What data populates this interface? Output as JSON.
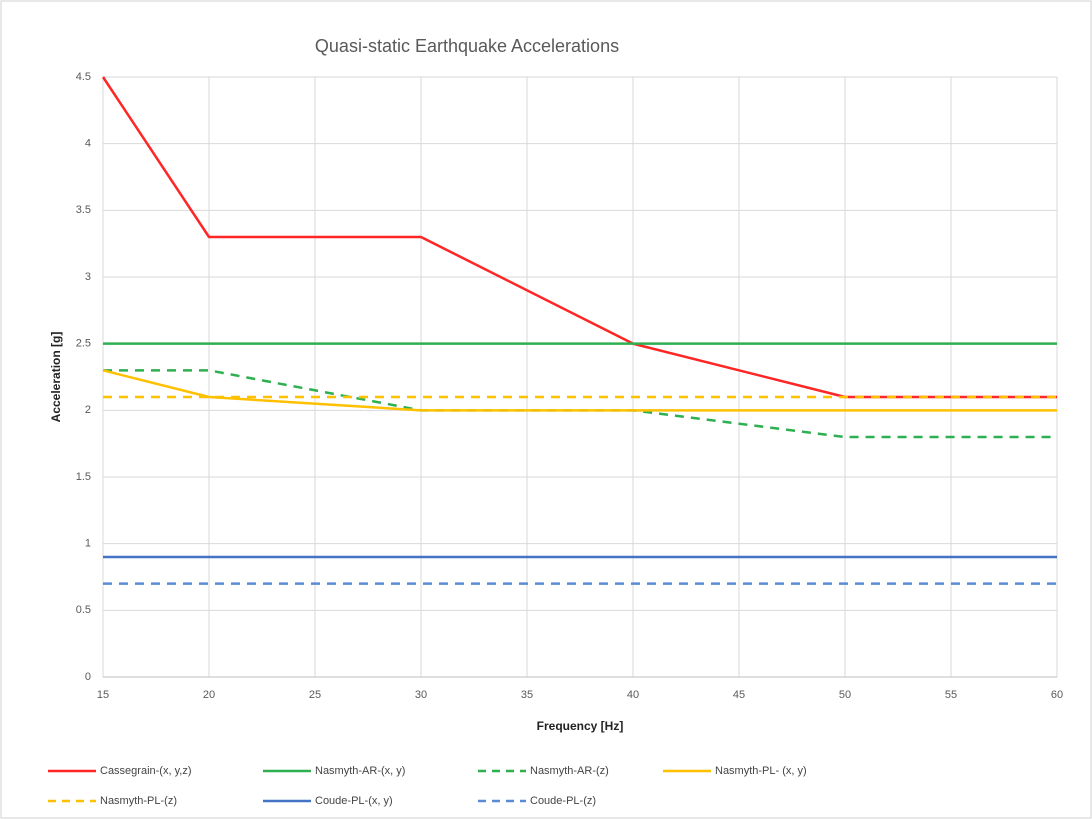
{
  "chart_data": {
    "type": "line",
    "title": "Quasi-static Earthquake Accelerations",
    "x_label": "Frequency [Hz]",
    "y_label": "Acceleration [g]",
    "x": [
      15,
      20,
      30,
      40,
      50,
      60
    ],
    "series": [
      {
        "name": "Cassegrain-(x, y,z)",
        "color": "#ff2626",
        "dashed": false,
        "values": [
          4.5,
          3.3,
          3.3,
          2.5,
          2.1,
          2.1
        ]
      },
      {
        "name": "Nasmyth-AR-(x, y)",
        "color": "#2eb050",
        "dashed": false,
        "values": [
          2.5,
          2.5,
          2.5,
          2.5,
          2.5,
          2.5
        ]
      },
      {
        "name": "Nasmyth-AR-(z)",
        "color": "#2eb050",
        "dashed": true,
        "values": [
          2.3,
          2.3,
          2.0,
          2.0,
          1.8,
          1.8
        ]
      },
      {
        "name": "Nasmyth-PL- (x, y)",
        "color": "#ffc000",
        "dashed": false,
        "values": [
          2.3,
          2.1,
          2.0,
          2.0,
          2.0,
          2.0
        ]
      },
      {
        "name": "Nasmyth-PL-(z)",
        "color": "#ffc000",
        "dashed": true,
        "values": [
          2.1,
          2.1,
          2.1,
          2.1,
          2.1,
          2.1
        ]
      },
      {
        "name": "Coude-PL-(x, y)",
        "color": "#4472c4",
        "dashed": false,
        "values": [
          0.9,
          0.9,
          0.9,
          0.9,
          0.9,
          0.9
        ]
      },
      {
        "name": "Coude-PL-(z)",
        "color": "#5b8bd6",
        "dashed": true,
        "values": [
          0.7,
          0.7,
          0.7,
          0.7,
          0.7,
          0.7
        ]
      }
    ],
    "xlim": [
      15,
      60
    ],
    "xticks": [
      15,
      20,
      25,
      30,
      35,
      40,
      45,
      50,
      55,
      60
    ],
    "ylim": [
      0,
      4.5
    ],
    "yticks": [
      0,
      0.5,
      1,
      1.5,
      2,
      2.5,
      3,
      3.5,
      4,
      4.5
    ],
    "grid": true,
    "legend": "bottom"
  }
}
